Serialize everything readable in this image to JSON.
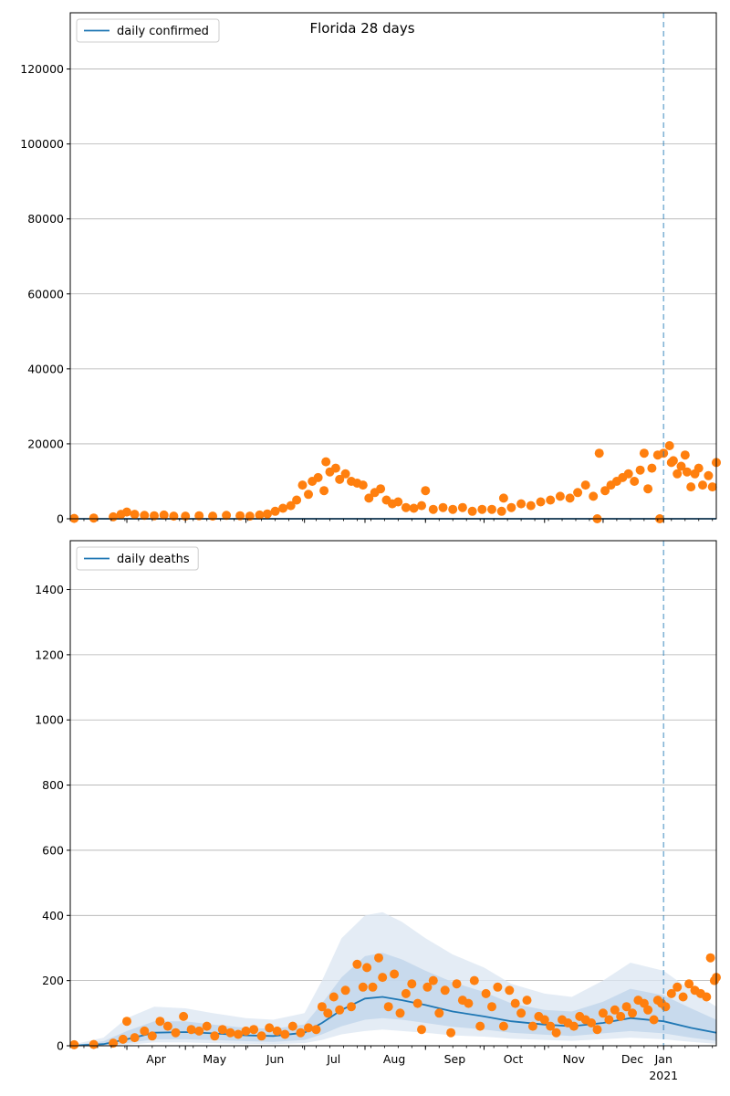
{
  "figure": {
    "title": "Florida 28 days",
    "year_label": "2021",
    "month_labels": [
      "Apr",
      "May",
      "Jun",
      "Jul",
      "Aug",
      "Sep",
      "Oct",
      "Nov",
      "Dec",
      "Jan"
    ]
  },
  "colors": {
    "observed": "#ff7f0e",
    "model": "#1f77b4",
    "band_outer": "#dbe6f2",
    "band_mid": "#bfd4e9",
    "band_inner": "#9fbfdd",
    "grid": "#b0b0b0",
    "axes": "#000000"
  },
  "chart_data": [
    {
      "type": "scatter",
      "title": "Florida 28 days",
      "xlabel": "",
      "ylabel": "",
      "x_range": [
        "2020-03-03",
        "2021-01-28"
      ],
      "ylim": [
        0,
        135000
      ],
      "yticks": [
        0,
        20000,
        40000,
        60000,
        80000,
        100000,
        120000
      ],
      "grid": "horizontal",
      "legend_placement": "top-left",
      "legend": [
        "daily confirmed"
      ],
      "forecast_start": "2021-01-01",
      "series": [
        {
          "name": "daily confirmed",
          "kind": "line",
          "x": [
            "2020-03-03",
            "2020-06-01",
            "2020-09-01",
            "2020-12-01",
            "2021-01-28"
          ],
          "y": [
            0,
            0,
            0,
            0,
            0
          ]
        },
        {
          "kind": "scatter",
          "x": [
            "2020-03-05",
            "2020-03-15",
            "2020-03-25",
            "2020-03-29",
            "2020-04-01",
            "2020-04-05",
            "2020-04-10",
            "2020-04-15",
            "2020-04-20",
            "2020-04-25",
            "2020-05-01",
            "2020-05-08",
            "2020-05-15",
            "2020-05-22",
            "2020-05-29",
            "2020-06-03",
            "2020-06-08",
            "2020-06-12",
            "2020-06-16",
            "2020-06-20",
            "2020-06-24",
            "2020-06-27",
            "2020-06-30",
            "2020-07-03",
            "2020-07-05",
            "2020-07-08",
            "2020-07-11",
            "2020-07-12",
            "2020-07-14",
            "2020-07-17",
            "2020-07-19",
            "2020-07-22",
            "2020-07-25",
            "2020-07-28",
            "2020-07-31",
            "2020-08-03",
            "2020-08-06",
            "2020-08-09",
            "2020-08-12",
            "2020-08-15",
            "2020-08-18",
            "2020-08-22",
            "2020-08-26",
            "2020-08-30",
            "2020-09-01",
            "2020-09-05",
            "2020-09-10",
            "2020-09-15",
            "2020-09-20",
            "2020-09-25",
            "2020-09-30",
            "2020-10-05",
            "2020-10-10",
            "2020-10-11",
            "2020-10-15",
            "2020-10-20",
            "2020-10-25",
            "2020-10-30",
            "2020-11-04",
            "2020-11-09",
            "2020-11-14",
            "2020-11-18",
            "2020-11-22",
            "2020-11-26",
            "2020-11-28",
            "2020-11-29",
            "2020-12-02",
            "2020-12-05",
            "2020-12-08",
            "2020-12-11",
            "2020-12-14",
            "2020-12-17",
            "2020-12-20",
            "2020-12-22",
            "2020-12-24",
            "2020-12-26",
            "2020-12-29",
            "2020-12-30",
            "2021-01-01",
            "2021-01-04",
            "2021-01-05",
            "2021-01-06",
            "2021-01-08",
            "2021-01-10",
            "2021-01-12",
            "2021-01-13",
            "2021-01-15",
            "2021-01-17",
            "2021-01-19",
            "2021-01-21",
            "2021-01-24",
            "2021-01-26",
            "2021-01-28"
          ],
          "y": [
            100,
            200,
            500,
            1200,
            1800,
            1200,
            900,
            800,
            1000,
            700,
            700,
            800,
            700,
            900,
            800,
            700,
            1000,
            1300,
            2000,
            2800,
            3500,
            5000,
            9000,
            6500,
            10000,
            11000,
            7500,
            15200,
            12500,
            13500,
            10500,
            12000,
            10000,
            9500,
            9000,
            5500,
            7000,
            8000,
            5000,
            4000,
            4500,
            3000,
            2800,
            3500,
            7500,
            2500,
            3000,
            2500,
            3000,
            2000,
            2500,
            2500,
            2000,
            5500,
            3000,
            4000,
            3500,
            4500,
            5000,
            6000,
            5500,
            7000,
            9000,
            6000,
            0,
            17500,
            7500,
            9000,
            10000,
            11000,
            12000,
            10000,
            13000,
            17500,
            8000,
            13500,
            17000,
            0,
            17500,
            19500,
            15000,
            15500,
            12000,
            14000,
            17000,
            12500,
            8500,
            12000,
            13500,
            9000,
            11500,
            8500,
            15000
          ]
        }
      ]
    },
    {
      "type": "line",
      "title": "",
      "xlabel": "",
      "ylabel": "",
      "x_range": [
        "2020-03-03",
        "2021-01-28"
      ],
      "ylim": [
        0,
        1550
      ],
      "yticks": [
        0,
        200,
        400,
        600,
        800,
        1000,
        1200,
        1400
      ],
      "grid": "horizontal",
      "legend_placement": "top-left",
      "legend": [
        "daily deaths"
      ],
      "forecast_start": "2021-01-01",
      "series": [
        {
          "name": "daily deaths",
          "kind": "line",
          "x": [
            "2020-03-03",
            "2020-03-20",
            "2020-04-01",
            "2020-04-15",
            "2020-05-01",
            "2020-05-15",
            "2020-06-01",
            "2020-06-15",
            "2020-07-01",
            "2020-07-10",
            "2020-07-20",
            "2020-08-01",
            "2020-08-10",
            "2020-08-20",
            "2020-09-01",
            "2020-09-15",
            "2020-10-01",
            "2020-10-15",
            "2020-11-01",
            "2020-11-15",
            "2020-12-01",
            "2020-12-15",
            "2021-01-01",
            "2021-01-15",
            "2021-01-28"
          ],
          "y": [
            0,
            5,
            20,
            40,
            42,
            38,
            32,
            30,
            40,
            70,
            110,
            145,
            150,
            140,
            125,
            105,
            90,
            75,
            65,
            60,
            70,
            85,
            75,
            55,
            40
          ]
        },
        {
          "kind": "band",
          "x": [
            "2020-03-03",
            "2020-03-20",
            "2020-04-01",
            "2020-04-15",
            "2020-05-01",
            "2020-05-15",
            "2020-06-01",
            "2020-06-15",
            "2020-07-01",
            "2020-07-10",
            "2020-07-20",
            "2020-08-01",
            "2020-08-10",
            "2020-08-20",
            "2020-09-01",
            "2020-09-15",
            "2020-10-01",
            "2020-10-15",
            "2020-11-01",
            "2020-11-15",
            "2020-12-01",
            "2020-12-15",
            "2021-01-01",
            "2021-01-15",
            "2021-01-28"
          ],
          "lower": [
            0,
            0,
            3,
            10,
            10,
            8,
            6,
            5,
            8,
            18,
            35,
            45,
            50,
            45,
            40,
            32,
            28,
            22,
            18,
            15,
            20,
            25,
            20,
            12,
            6
          ],
          "upper": [
            2,
            25,
            85,
            120,
            115,
            100,
            85,
            80,
            100,
            200,
            330,
            400,
            410,
            380,
            330,
            280,
            240,
            190,
            160,
            150,
            200,
            255,
            230,
            170,
            120
          ]
        },
        {
          "kind": "band",
          "x": [
            "2020-03-03",
            "2020-03-20",
            "2020-04-01",
            "2020-04-15",
            "2020-05-01",
            "2020-05-15",
            "2020-06-01",
            "2020-06-15",
            "2020-07-01",
            "2020-07-10",
            "2020-07-20",
            "2020-08-01",
            "2020-08-10",
            "2020-08-20",
            "2020-09-01",
            "2020-09-15",
            "2020-10-01",
            "2020-10-15",
            "2020-11-01",
            "2020-11-15",
            "2020-12-01",
            "2020-12-15",
            "2021-01-01",
            "2021-01-15",
            "2021-01-28"
          ],
          "lower": [
            0,
            1,
            8,
            20,
            20,
            18,
            14,
            12,
            18,
            35,
            60,
            80,
            85,
            80,
            70,
            58,
            50,
            40,
            34,
            30,
            38,
            45,
            38,
            25,
            15
          ],
          "upper": [
            1,
            14,
            45,
            75,
            75,
            65,
            55,
            52,
            65,
            130,
            210,
            275,
            285,
            265,
            230,
            195,
            165,
            130,
            110,
            105,
            135,
            175,
            155,
            115,
            80
          ]
        },
        {
          "kind": "scatter",
          "x": [
            "2020-03-05",
            "2020-03-15",
            "2020-03-25",
            "2020-03-30",
            "2020-04-01",
            "2020-04-05",
            "2020-04-10",
            "2020-04-14",
            "2020-04-18",
            "2020-04-22",
            "2020-04-26",
            "2020-04-30",
            "2020-05-04",
            "2020-05-08",
            "2020-05-12",
            "2020-05-16",
            "2020-05-20",
            "2020-05-24",
            "2020-05-28",
            "2020-06-01",
            "2020-06-05",
            "2020-06-09",
            "2020-06-13",
            "2020-06-17",
            "2020-06-21",
            "2020-06-25",
            "2020-06-29",
            "2020-07-03",
            "2020-07-07",
            "2020-07-10",
            "2020-07-13",
            "2020-07-16",
            "2020-07-19",
            "2020-07-22",
            "2020-07-25",
            "2020-07-28",
            "2020-07-31",
            "2020-08-02",
            "2020-08-05",
            "2020-08-08",
            "2020-08-10",
            "2020-08-13",
            "2020-08-16",
            "2020-08-19",
            "2020-08-22",
            "2020-08-25",
            "2020-08-28",
            "2020-08-30",
            "2020-09-02",
            "2020-09-05",
            "2020-09-08",
            "2020-09-11",
            "2020-09-14",
            "2020-09-17",
            "2020-09-20",
            "2020-09-23",
            "2020-09-26",
            "2020-09-29",
            "2020-10-02",
            "2020-10-05",
            "2020-10-08",
            "2020-10-11",
            "2020-10-14",
            "2020-10-17",
            "2020-10-20",
            "2020-10-23",
            "2020-10-26",
            "2020-10-29",
            "2020-11-01",
            "2020-11-04",
            "2020-11-07",
            "2020-11-10",
            "2020-11-13",
            "2020-11-16",
            "2020-11-19",
            "2020-11-22",
            "2020-11-25",
            "2020-11-28",
            "2020-12-01",
            "2020-12-04",
            "2020-12-07",
            "2020-12-10",
            "2020-12-13",
            "2020-12-16",
            "2020-12-19",
            "2020-12-22",
            "2020-12-24",
            "2020-12-27",
            "2020-12-29",
            "2020-12-31",
            "2021-01-02",
            "2021-01-05",
            "2021-01-08",
            "2021-01-11",
            "2021-01-14",
            "2021-01-17",
            "2021-01-20",
            "2021-01-23",
            "2021-01-25",
            "2021-01-27",
            "2021-01-28"
          ],
          "y": [
            3,
            4,
            8,
            20,
            75,
            25,
            45,
            30,
            75,
            60,
            40,
            90,
            50,
            45,
            60,
            30,
            50,
            40,
            35,
            45,
            50,
            30,
            55,
            45,
            35,
            60,
            40,
            55,
            50,
            120,
            100,
            150,
            110,
            170,
            120,
            250,
            180,
            240,
            180,
            270,
            210,
            120,
            220,
            100,
            160,
            190,
            130,
            50,
            180,
            200,
            100,
            170,
            40,
            190,
            140,
            130,
            200,
            60,
            160,
            120,
            180,
            60,
            170,
            130,
            100,
            140,
            60,
            90,
            80,
            60,
            40,
            80,
            70,
            60,
            90,
            80,
            70,
            50,
            100,
            80,
            110,
            90,
            120,
            100,
            140,
            130,
            110,
            80,
            140,
            130,
            120,
            160,
            180,
            150,
            190,
            170,
            160,
            150,
            270,
            200,
            210
          ]
        }
      ]
    }
  ]
}
